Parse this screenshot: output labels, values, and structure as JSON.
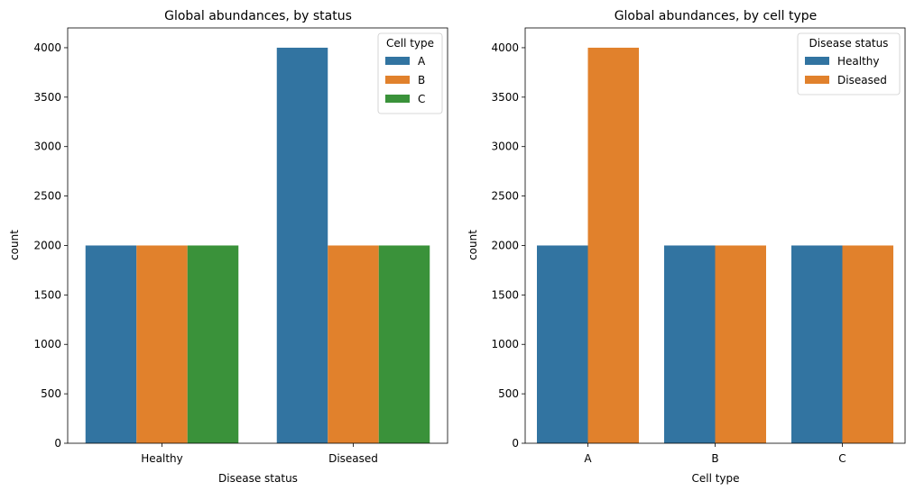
{
  "chart_data": [
    {
      "type": "bar",
      "title": "Global abundances, by status",
      "xlabel": "Disease status",
      "ylabel": "count",
      "categories": [
        "Healthy",
        "Diseased"
      ],
      "ylim": [
        0,
        4200
      ],
      "yticks": [
        0,
        500,
        1000,
        1500,
        2000,
        2500,
        3000,
        3500,
        4000
      ],
      "legend": {
        "title": "Cell type",
        "position": "top-right"
      },
      "series": [
        {
          "name": "A",
          "values": [
            2000,
            4000
          ],
          "color": "#3274a1"
        },
        {
          "name": "B",
          "values": [
            2000,
            2000
          ],
          "color": "#e1812c"
        },
        {
          "name": "C",
          "values": [
            2000,
            2000
          ],
          "color": "#3a923a"
        }
      ]
    },
    {
      "type": "bar",
      "title": "Global abundances, by cell type",
      "xlabel": "Cell type",
      "ylabel": "count",
      "categories": [
        "A",
        "B",
        "C"
      ],
      "ylim": [
        0,
        4200
      ],
      "yticks": [
        0,
        500,
        1000,
        1500,
        2000,
        2500,
        3000,
        3500,
        4000
      ],
      "legend": {
        "title": "Disease status",
        "position": "top-right"
      },
      "series": [
        {
          "name": "Healthy",
          "values": [
            2000,
            2000,
            2000
          ],
          "color": "#3274a1"
        },
        {
          "name": "Diseased",
          "values": [
            4000,
            2000,
            2000
          ],
          "color": "#e1812c"
        }
      ]
    }
  ]
}
